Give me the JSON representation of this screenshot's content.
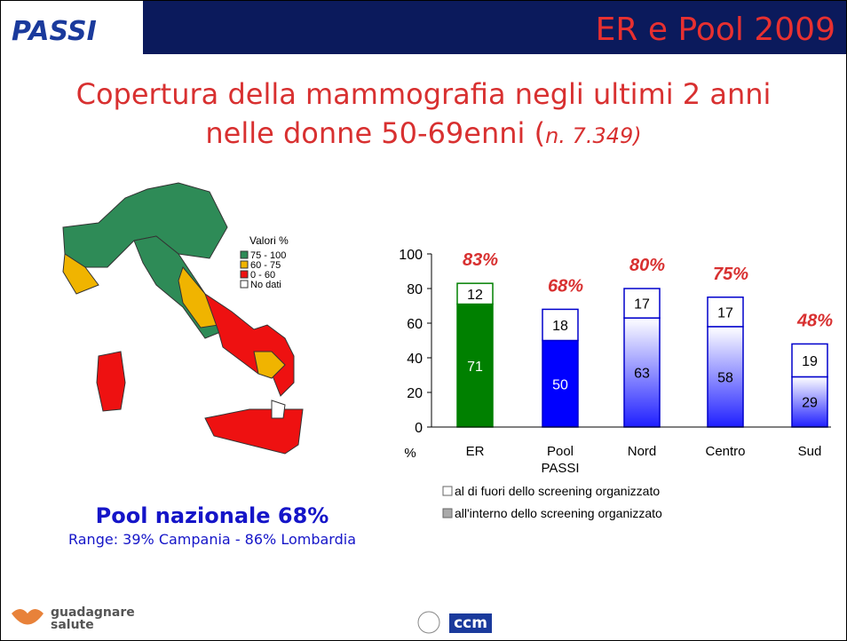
{
  "header": {
    "logo": "PASSI",
    "title": "ER e Pool 2009"
  },
  "subtitle": {
    "line1": "Copertura della mammografia negli ultimi 2 anni",
    "line2": "nelle donne 50-69enni  (",
    "note": "n. 7.349)"
  },
  "map": {
    "legend_title": "Valori %",
    "legend": [
      {
        "label": "75 - 100",
        "color": "#2e8b57"
      },
      {
        "label": "60 - 75",
        "color": "#f0b400"
      },
      {
        "label": "0 - 60",
        "color": "#ee1111"
      },
      {
        "label": "No dati",
        "color": "#ffffff"
      }
    ]
  },
  "summary": {
    "title": "Pool nazionale  68%",
    "range": "Range: 39% Campania - 86% Lombardia"
  },
  "chart_data": {
    "type": "stacked_bar",
    "y_label": "%",
    "categories": [
      "ER",
      "Pool PASSI",
      "Nord",
      "Centro",
      "Sud"
    ],
    "ylim": [
      0,
      100
    ],
    "yticks": [
      0,
      20,
      40,
      60,
      80,
      100
    ],
    "series": [
      {
        "name": "all'interno dello screening organizzato",
        "color": "#8c8c8c",
        "bar_colors": [
          "#008000",
          "#0000ff",
          "#2a2aff",
          "#2a2aff",
          "#2a2aff"
        ],
        "label_color": "#ffffff",
        "values": [
          71,
          50,
          63,
          58,
          29
        ]
      },
      {
        "name": "al di fuori dello screening organizzato",
        "color": "#ffffff",
        "values": [
          12,
          18,
          17,
          17,
          19
        ]
      }
    ],
    "totals": [
      83,
      68,
      80,
      75,
      48
    ],
    "total_labels": [
      "83%",
      "68%",
      "80%",
      "75%",
      "48%"
    ]
  },
  "footer": {
    "left": "guadagnare",
    "left2": "salute",
    "center": "ccm"
  }
}
